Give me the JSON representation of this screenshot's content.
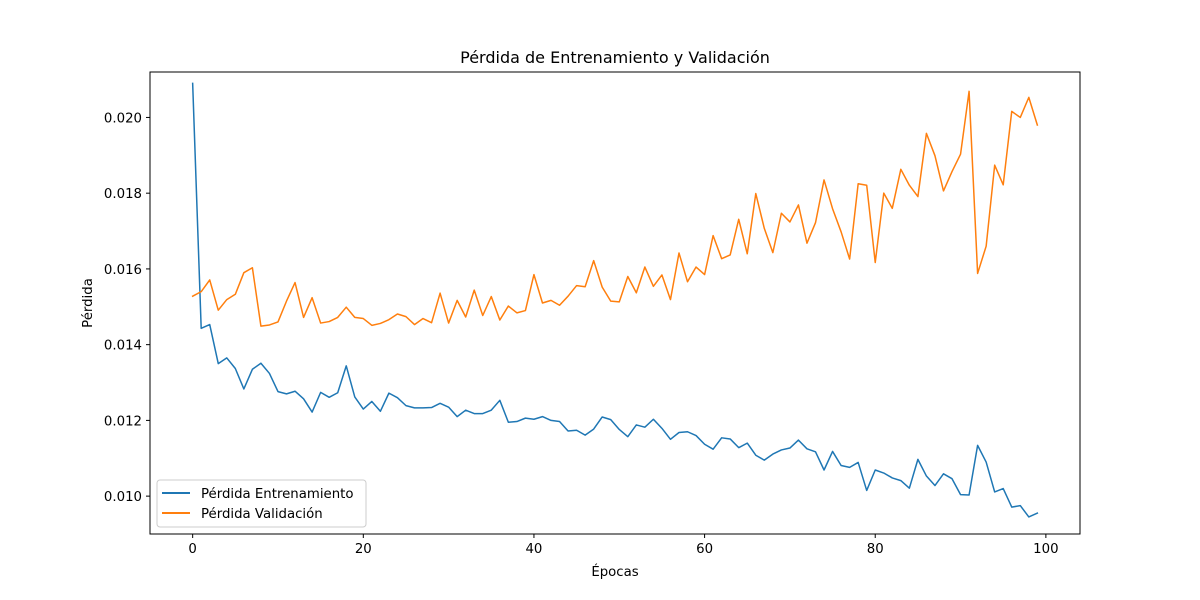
{
  "chart_data": {
    "type": "line",
    "title": "Pérdida de Entrenamiento y Validación",
    "xlabel": "Épocas",
    "ylabel": "Pérdida",
    "xlim": [
      -5,
      104
    ],
    "ylim": [
      0.009,
      0.0212
    ],
    "xticks": [
      0,
      20,
      40,
      60,
      80,
      100
    ],
    "xtick_labels": [
      "0",
      "20",
      "40",
      "60",
      "80",
      "100"
    ],
    "yticks": [
      0.01,
      0.012,
      0.014,
      0.016,
      0.018,
      0.02
    ],
    "ytick_labels": [
      "0.010",
      "0.012",
      "0.014",
      "0.016",
      "0.018",
      "0.020"
    ],
    "grid": false,
    "legend_position": "lower-left",
    "series": [
      {
        "name": "Pérdida Entrenamiento",
        "color": "#1f77b4",
        "values": [
          0.0209,
          0.01443,
          0.01453,
          0.0135,
          0.01365,
          0.01337,
          0.01283,
          0.01335,
          0.01351,
          0.01324,
          0.01276,
          0.0127,
          0.01277,
          0.01257,
          0.01222,
          0.01274,
          0.01261,
          0.01273,
          0.01344,
          0.01262,
          0.0123,
          0.0125,
          0.01224,
          0.01272,
          0.0126,
          0.01239,
          0.01233,
          0.01233,
          0.01234,
          0.01245,
          0.01235,
          0.0121,
          0.01227,
          0.01218,
          0.01218,
          0.01227,
          0.01253,
          0.01195,
          0.01197,
          0.01206,
          0.01203,
          0.0121,
          0.012,
          0.01197,
          0.01172,
          0.01174,
          0.01161,
          0.01177,
          0.01209,
          0.01202,
          0.01176,
          0.01157,
          0.01188,
          0.01182,
          0.01203,
          0.01179,
          0.0115,
          0.01168,
          0.0117,
          0.0116,
          0.01137,
          0.01124,
          0.01154,
          0.01151,
          0.01128,
          0.0114,
          0.01108,
          0.01095,
          0.01111,
          0.01122,
          0.01127,
          0.01148,
          0.01125,
          0.01117,
          0.01069,
          0.01118,
          0.01081,
          0.01076,
          0.01089,
          0.01015,
          0.01069,
          0.01061,
          0.01048,
          0.01041,
          0.01021,
          0.01097,
          0.01053,
          0.01028,
          0.01059,
          0.01046,
          0.01004,
          0.01003,
          0.01134,
          0.0109,
          0.01011,
          0.0102,
          0.00971,
          0.00975,
          0.00945,
          0.00955
        ]
      },
      {
        "name": "Pérdida Validación",
        "color": "#ff7f0e",
        "values": [
          0.01528,
          0.0154,
          0.01571,
          0.01491,
          0.01519,
          0.01533,
          0.0159,
          0.01603,
          0.01449,
          0.01452,
          0.0146,
          0.01515,
          0.01564,
          0.01472,
          0.01524,
          0.01457,
          0.01461,
          0.01472,
          0.01499,
          0.01472,
          0.01469,
          0.01451,
          0.01456,
          0.01466,
          0.01481,
          0.01474,
          0.01453,
          0.01469,
          0.01458,
          0.01536,
          0.01457,
          0.01517,
          0.01473,
          0.01544,
          0.01477,
          0.01527,
          0.01465,
          0.01502,
          0.01484,
          0.0149,
          0.01585,
          0.0151,
          0.01517,
          0.01504,
          0.01528,
          0.01556,
          0.01553,
          0.01622,
          0.01552,
          0.01515,
          0.01513,
          0.0158,
          0.01537,
          0.01605,
          0.01554,
          0.01584,
          0.01519,
          0.01642,
          0.01566,
          0.01605,
          0.01585,
          0.01688,
          0.01627,
          0.01637,
          0.01731,
          0.0164,
          0.01799,
          0.01707,
          0.01643,
          0.01747,
          0.01724,
          0.01769,
          0.01668,
          0.01722,
          0.01835,
          0.01759,
          0.01698,
          0.01626,
          0.01825,
          0.01821,
          0.01617,
          0.018,
          0.0176,
          0.01863,
          0.01821,
          0.01791,
          0.01958,
          0.01899,
          0.01806,
          0.01857,
          0.01903,
          0.02069,
          0.01588,
          0.0166,
          0.01874,
          0.01822,
          0.02016,
          0.02,
          0.02053,
          0.0198
        ]
      }
    ]
  }
}
